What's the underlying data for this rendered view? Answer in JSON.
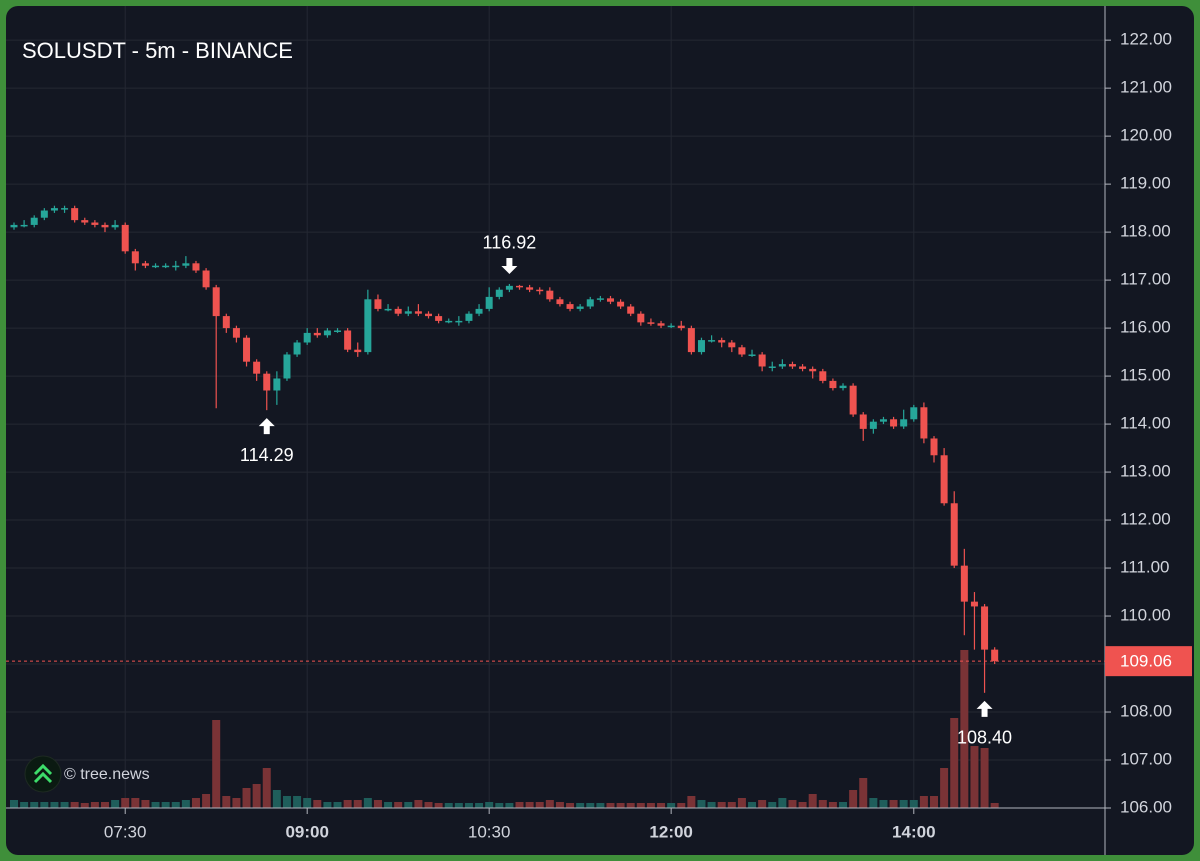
{
  "chart_data": {
    "type": "candlestick",
    "title": "SOLUSDT - 5m - BINANCE",
    "x": [
      "06:35",
      "06:40",
      "06:45",
      "06:50",
      "06:55",
      "07:00",
      "07:05",
      "07:10",
      "07:15",
      "07:20",
      "07:25",
      "07:30",
      "07:35",
      "07:40",
      "07:45",
      "07:50",
      "07:55",
      "08:00",
      "08:05",
      "08:10",
      "08:15",
      "08:20",
      "08:25",
      "08:30",
      "08:35",
      "08:40",
      "08:45",
      "08:50",
      "08:55",
      "09:00",
      "09:05",
      "09:10",
      "09:15",
      "09:20",
      "09:25",
      "09:30",
      "09:35",
      "09:40",
      "09:45",
      "09:50",
      "09:55",
      "10:00",
      "10:05",
      "10:10",
      "10:15",
      "10:20",
      "10:25",
      "10:30",
      "10:35",
      "10:40",
      "10:45",
      "10:50",
      "10:55",
      "11:00",
      "11:05",
      "11:10",
      "11:15",
      "11:20",
      "11:25",
      "11:30",
      "11:35",
      "11:40",
      "11:45",
      "11:50",
      "11:55",
      "12:00",
      "12:05",
      "12:10",
      "12:15",
      "12:20",
      "12:25",
      "12:30",
      "12:35",
      "12:40",
      "12:45",
      "12:50",
      "12:55",
      "13:00",
      "13:05",
      "13:10",
      "13:15",
      "13:20",
      "13:25",
      "13:30",
      "13:35",
      "13:40",
      "13:45",
      "13:50",
      "13:55",
      "14:00",
      "14:05",
      "14:10",
      "14:15",
      "14:20",
      "14:25",
      "14:30",
      "14:35",
      "14:40"
    ],
    "open": [
      118.1,
      118.15,
      118.15,
      118.3,
      118.45,
      118.5,
      118.5,
      118.25,
      118.2,
      118.15,
      118.1,
      118.15,
      117.6,
      117.35,
      117.3,
      117.3,
      117.3,
      117.3,
      117.35,
      117.2,
      116.85,
      116.25,
      116.0,
      115.8,
      115.3,
      115.05,
      114.7,
      114.95,
      115.45,
      115.7,
      115.9,
      115.85,
      115.95,
      115.95,
      115.55,
      115.5,
      116.6,
      116.4,
      116.4,
      116.3,
      116.35,
      116.3,
      116.25,
      116.15,
      116.15,
      116.15,
      116.3,
      116.4,
      116.65,
      116.8,
      116.88,
      116.85,
      116.8,
      116.78,
      116.6,
      116.5,
      116.4,
      116.45,
      116.6,
      116.62,
      116.55,
      116.45,
      116.3,
      116.12,
      116.1,
      116.05,
      116.05,
      116.0,
      115.5,
      115.75,
      115.75,
      115.7,
      115.6,
      115.45,
      115.45,
      115.2,
      115.2,
      115.25,
      115.2,
      115.15,
      115.1,
      114.9,
      114.75,
      114.8,
      114.2,
      113.9,
      114.05,
      114.1,
      113.95,
      114.1,
      114.35,
      113.7,
      113.35,
      112.35,
      111.05,
      110.3,
      110.2,
      109.3
    ],
    "high": [
      118.2,
      118.25,
      118.35,
      118.5,
      118.55,
      118.55,
      118.55,
      118.3,
      118.25,
      118.2,
      118.25,
      118.2,
      117.65,
      117.4,
      117.35,
      117.35,
      117.4,
      117.5,
      117.4,
      117.25,
      116.9,
      116.3,
      116.05,
      115.85,
      115.35,
      115.1,
      115.1,
      115.5,
      115.75,
      116.0,
      116.0,
      116.0,
      116.0,
      116.0,
      115.7,
      116.8,
      116.7,
      116.5,
      116.45,
      116.45,
      116.5,
      116.35,
      116.3,
      116.2,
      116.25,
      116.35,
      116.5,
      116.85,
      116.85,
      116.92,
      116.9,
      116.9,
      116.85,
      116.85,
      116.65,
      116.55,
      116.5,
      116.65,
      116.67,
      116.67,
      116.6,
      116.5,
      116.35,
      116.2,
      116.15,
      116.1,
      116.15,
      116.05,
      115.8,
      115.85,
      115.8,
      115.75,
      115.65,
      115.55,
      115.5,
      115.3,
      115.35,
      115.3,
      115.25,
      115.2,
      115.15,
      114.95,
      114.85,
      114.85,
      114.25,
      114.1,
      114.15,
      114.15,
      114.3,
      114.4,
      114.45,
      113.75,
      113.5,
      112.6,
      111.4,
      110.5,
      110.25,
      109.35
    ],
    "low": [
      118.05,
      118.1,
      118.1,
      118.25,
      118.4,
      118.4,
      118.2,
      118.15,
      118.1,
      118.0,
      118.05,
      117.55,
      117.2,
      117.25,
      117.25,
      117.25,
      117.2,
      117.25,
      117.15,
      116.8,
      114.33,
      115.9,
      115.7,
      115.2,
      114.9,
      114.29,
      114.4,
      114.9,
      115.4,
      115.65,
      115.8,
      115.8,
      115.9,
      115.5,
      115.4,
      115.45,
      116.35,
      116.35,
      116.25,
      116.25,
      116.25,
      116.2,
      116.1,
      116.1,
      116.05,
      116.1,
      116.25,
      116.35,
      116.6,
      116.75,
      116.8,
      116.75,
      116.7,
      116.55,
      116.45,
      116.35,
      116.35,
      116.4,
      116.55,
      116.5,
      116.4,
      116.25,
      116.05,
      116.05,
      116.0,
      116.0,
      115.95,
      115.45,
      115.45,
      115.7,
      115.6,
      115.5,
      115.4,
      115.4,
      115.1,
      115.1,
      115.15,
      115.15,
      115.1,
      114.95,
      114.85,
      114.7,
      114.7,
      114.15,
      113.65,
      113.8,
      114.0,
      113.9,
      113.9,
      114.05,
      113.6,
      113.2,
      112.3,
      111.0,
      109.6,
      109.3,
      108.4,
      109.0
    ],
    "close": [
      118.15,
      118.15,
      118.3,
      118.45,
      118.5,
      118.5,
      118.25,
      118.2,
      118.15,
      118.1,
      118.15,
      117.6,
      117.35,
      117.3,
      117.3,
      117.3,
      117.3,
      117.35,
      117.2,
      116.85,
      116.25,
      116.0,
      115.8,
      115.3,
      115.05,
      114.7,
      114.95,
      115.45,
      115.7,
      115.9,
      115.85,
      115.95,
      115.95,
      115.55,
      115.5,
      116.6,
      116.4,
      116.4,
      116.3,
      116.35,
      116.3,
      116.25,
      116.15,
      116.15,
      116.15,
      116.3,
      116.4,
      116.65,
      116.8,
      116.88,
      116.85,
      116.8,
      116.78,
      116.6,
      116.5,
      116.4,
      116.45,
      116.6,
      116.62,
      116.55,
      116.45,
      116.3,
      116.12,
      116.1,
      116.05,
      116.05,
      116.0,
      115.5,
      115.75,
      115.75,
      115.7,
      115.6,
      115.45,
      115.45,
      115.2,
      115.2,
      115.25,
      115.2,
      115.15,
      115.1,
      114.9,
      114.75,
      114.8,
      114.2,
      113.9,
      114.05,
      114.1,
      113.95,
      114.1,
      114.35,
      113.7,
      113.35,
      112.35,
      111.05,
      110.3,
      110.2,
      109.3,
      109.06
    ],
    "volume": [
      8,
      6,
      6,
      6,
      6,
      6,
      6,
      5,
      6,
      6,
      8,
      10,
      10,
      8,
      6,
      6,
      6,
      8,
      10,
      14,
      88,
      12,
      10,
      20,
      24,
      40,
      18,
      12,
      12,
      10,
      8,
      6,
      6,
      8,
      8,
      10,
      8,
      6,
      6,
      6,
      8,
      6,
      5,
      5,
      5,
      5,
      5,
      6,
      5,
      5,
      6,
      6,
      6,
      8,
      6,
      5,
      5,
      5,
      5,
      5,
      5,
      5,
      5,
      5,
      5,
      5,
      5,
      12,
      8,
      6,
      6,
      6,
      10,
      6,
      8,
      6,
      10,
      8,
      6,
      14,
      8,
      6,
      6,
      18,
      30,
      10,
      8,
      8,
      8,
      8,
      12,
      12,
      40,
      90,
      158,
      62,
      60,
      5
    ],
    "up_color": "#26a69a",
    "down_color": "#ef5350",
    "volume_up_color": "#1f5e5b",
    "volume_down_color": "#7a3336",
    "ylim": [
      106,
      122.67
    ],
    "yticks": [
      {
        "value": 106,
        "label": "106.00"
      },
      {
        "value": 107,
        "label": "107.00"
      },
      {
        "value": 108,
        "label": "108.00"
      },
      {
        "value": 109,
        "label": "109.00"
      },
      {
        "value": 110,
        "label": "110.00"
      },
      {
        "value": 111,
        "label": "111.00"
      },
      {
        "value": 112,
        "label": "112.00"
      },
      {
        "value": 113,
        "label": "113.00"
      },
      {
        "value": 114,
        "label": "114.00"
      },
      {
        "value": 115,
        "label": "115.00"
      },
      {
        "value": 116,
        "label": "116.00"
      },
      {
        "value": 117,
        "label": "117.00"
      },
      {
        "value": 118,
        "label": "118.00"
      },
      {
        "value": 119,
        "label": "119.00"
      },
      {
        "value": 120,
        "label": "120.00"
      },
      {
        "value": 121,
        "label": "121.00"
      },
      {
        "value": 122,
        "label": "122.00"
      }
    ],
    "xticks": [
      "07:30",
      "09:00",
      "10:30",
      "12:00",
      "14:00"
    ],
    "grid": true,
    "last_price": {
      "value": 109.06,
      "label": "109.06"
    },
    "annotations": [
      {
        "x": "08:40",
        "value": 114.29,
        "label": "114.29",
        "position": "below"
      },
      {
        "x": "10:40",
        "value": 116.92,
        "label": "116.92",
        "position": "above"
      },
      {
        "x": "14:35",
        "value": 108.4,
        "label": "108.40",
        "position": "below"
      }
    ]
  },
  "watermark": "© tree.news"
}
